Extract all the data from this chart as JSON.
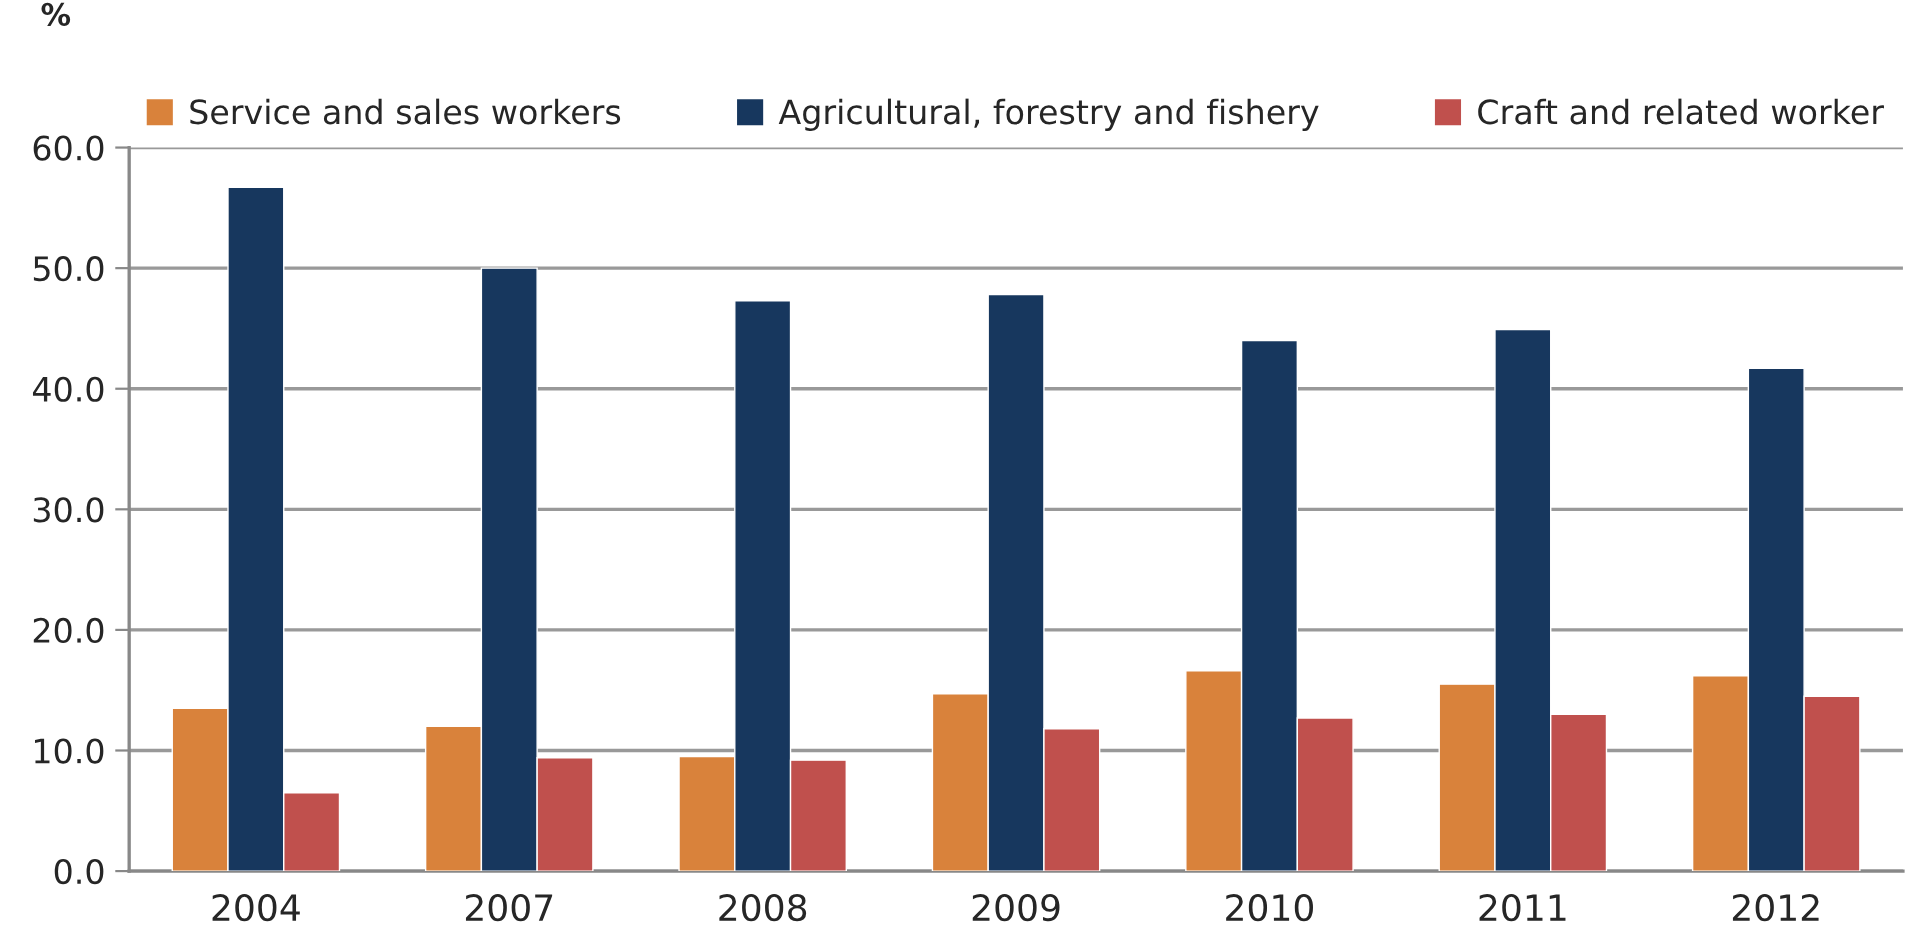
{
  "chart_data": {
    "type": "bar",
    "ylabel": "%",
    "categories": [
      "2004",
      "2007",
      "2008",
      "2009",
      "2010",
      "2011",
      "2012"
    ],
    "series": [
      {
        "name": "Service and sales workers",
        "color": "#d9823b",
        "values": [
          13.5,
          12.0,
          9.5,
          14.7,
          16.6,
          15.5,
          16.2
        ]
      },
      {
        "name": "Agricultural, forestry and fishery",
        "color": "#17375e",
        "values": [
          56.7,
          50.0,
          47.3,
          47.8,
          44.0,
          44.9,
          41.7
        ]
      },
      {
        "name": "Craft and related worker",
        "color": "#c0504d",
        "values": [
          6.5,
          9.4,
          9.2,
          11.8,
          12.7,
          13.0,
          14.5
        ]
      }
    ],
    "ylim": [
      0,
      60
    ],
    "yticks": [
      {
        "value": 0,
        "label": "0.0"
      },
      {
        "value": 10,
        "label": "10.0"
      },
      {
        "value": 20,
        "label": "20.0"
      },
      {
        "value": 30,
        "label": "30.0"
      },
      {
        "value": 40,
        "label": "40.0"
      },
      {
        "value": 50,
        "label": "50.0"
      },
      {
        "value": 60,
        "label": "60.0"
      }
    ],
    "grid": "y",
    "legend": "top"
  }
}
